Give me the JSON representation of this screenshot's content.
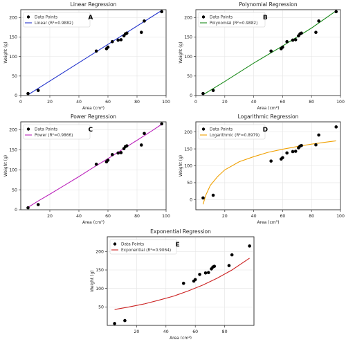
{
  "figure": {
    "panels": [
      {
        "letter": "A",
        "title": "Linear Regression"
      },
      {
        "letter": "B",
        "title": "Polynomial Regression"
      },
      {
        "letter": "C",
        "title": "Power Regression"
      },
      {
        "letter": "D",
        "title": "Logarithmic Regression"
      },
      {
        "letter": "E",
        "title": "Exponential Regression"
      }
    ]
  },
  "chart_data": [
    {
      "type": "scatter",
      "title": "Linear Regression",
      "panel_letter": "A",
      "xlabel": "Area (cm²)",
      "ylabel": "Weight (g)",
      "xlim": [
        0,
        100
      ],
      "ylim": [
        0,
        220
      ],
      "xticks": [
        0,
        20,
        40,
        60,
        80,
        100
      ],
      "yticks": [
        0,
        50,
        100,
        150,
        200
      ],
      "grid": true,
      "legend_position": "top-left",
      "series": [
        {
          "name": "Data Points",
          "kind": "points",
          "color": "#000000",
          "x": [
            5,
            12,
            52,
            59,
            60,
            63,
            67,
            69,
            71,
            72,
            73,
            83,
            85,
            97
          ],
          "y": [
            5,
            13,
            114,
            120,
            124,
            138,
            142,
            143,
            153,
            158,
            160,
            162,
            191,
            215
          ]
        },
        {
          "name": "Linear (R²=0.9882)",
          "kind": "fit",
          "color": "#2233cc",
          "x": [
            5,
            97
          ],
          "y": [
            2,
            218
          ]
        }
      ]
    },
    {
      "type": "scatter",
      "title": "Polynomial Regression",
      "panel_letter": "B",
      "xlabel": "Area (cm²)",
      "ylabel": "Weight (g)",
      "xlim": [
        0,
        100
      ],
      "ylim": [
        0,
        220
      ],
      "xticks": [
        0,
        20,
        40,
        60,
        80,
        100
      ],
      "yticks": [
        0,
        50,
        100,
        150,
        200
      ],
      "grid": true,
      "legend_position": "top-left",
      "series": [
        {
          "name": "Data Points",
          "kind": "points",
          "color": "#000000",
          "x": [
            5,
            12,
            52,
            59,
            60,
            63,
            67,
            69,
            71,
            72,
            73,
            83,
            85,
            97
          ],
          "y": [
            5,
            13,
            114,
            120,
            124,
            138,
            142,
            143,
            153,
            158,
            160,
            162,
            191,
            215
          ]
        },
        {
          "name": "Polynomial (R²=0.9882)",
          "kind": "fit",
          "color": "#1a8a1a",
          "x": [
            5,
            20,
            40,
            60,
            80,
            97
          ],
          "y": [
            2,
            36,
            83,
            127,
            173,
            217
          ]
        }
      ]
    },
    {
      "type": "scatter",
      "title": "Power Regression",
      "panel_letter": "C",
      "xlabel": "Area (cm²)",
      "ylabel": "Weight (g)",
      "xlim": [
        0,
        100
      ],
      "ylim": [
        0,
        220
      ],
      "xticks": [
        20,
        40,
        60,
        80,
        100
      ],
      "yticks": [
        0,
        50,
        100,
        150,
        200
      ],
      "grid": true,
      "legend_position": "top-left",
      "series": [
        {
          "name": "Data Points",
          "kind": "points",
          "color": "#000000",
          "x": [
            5,
            12,
            52,
            59,
            60,
            63,
            67,
            69,
            71,
            72,
            73,
            83,
            85,
            97
          ],
          "y": [
            5,
            13,
            114,
            120,
            124,
            138,
            142,
            143,
            153,
            158,
            160,
            162,
            191,
            215
          ]
        },
        {
          "name": "Power (R²=0.9866)",
          "kind": "fit",
          "color": "#bb22bb",
          "x": [
            5,
            12,
            20,
            30,
            40,
            50,
            60,
            70,
            80,
            90,
            97
          ],
          "y": [
            6,
            22,
            39,
            61,
            83,
            106,
            128,
            151,
            174,
            197,
            214
          ]
        }
      ]
    },
    {
      "type": "scatter",
      "title": "Logarithmic Regression",
      "panel_letter": "D",
      "xlabel": "Area (cm²)",
      "ylabel": "Weight (g)",
      "xlim": [
        0,
        100
      ],
      "ylim": [
        -30,
        230
      ],
      "xticks": [
        20,
        40,
        60,
        80,
        100
      ],
      "yticks": [
        0,
        50,
        100,
        150,
        200
      ],
      "grid": true,
      "legend_position": "top-left",
      "series": [
        {
          "name": "Data Points",
          "kind": "points",
          "color": "#000000",
          "x": [
            5,
            12,
            52,
            59,
            60,
            63,
            67,
            69,
            71,
            72,
            73,
            83,
            85,
            97
          ],
          "y": [
            5,
            13,
            114,
            120,
            124,
            138,
            142,
            143,
            153,
            158,
            160,
            162,
            191,
            215
          ]
        },
        {
          "name": "Logarithmic (R²=0.8979)",
          "kind": "fit",
          "color": "#f0a000",
          "x": [
            5,
            7,
            10,
            15,
            20,
            30,
            40,
            50,
            60,
            70,
            80,
            90,
            97
          ],
          "y": [
            -14,
            14,
            42,
            68,
            88,
            112,
            127,
            140,
            149,
            157,
            164,
            170,
            174
          ]
        }
      ]
    },
    {
      "type": "scatter",
      "title": "Exponential Regression",
      "panel_letter": "E",
      "xlabel": "Area (cm²)",
      "ylabel": "Weight (g)",
      "xlim": [
        0,
        100
      ],
      "ylim": [
        0,
        240
      ],
      "xticks": [
        20,
        40,
        60,
        80
      ],
      "yticks": [
        50,
        100,
        150,
        200
      ],
      "grid": true,
      "legend_position": "top-left",
      "series": [
        {
          "name": "Data Points",
          "kind": "points",
          "color": "#000000",
          "x": [
            5,
            12,
            52,
            59,
            60,
            63,
            67,
            69,
            71,
            72,
            73,
            83,
            85,
            97
          ],
          "y": [
            5,
            13,
            114,
            120,
            124,
            138,
            142,
            143,
            153,
            158,
            160,
            162,
            191,
            215
          ]
        },
        {
          "name": "Exponential (R²=0.9064)",
          "kind": "fit",
          "color": "#cc2222",
          "x": [
            5,
            15,
            25,
            35,
            45,
            55,
            65,
            75,
            85,
            97
          ],
          "y": [
            43,
            50,
            58,
            68,
            79,
            93,
            109,
            128,
            150,
            182
          ]
        }
      ]
    }
  ]
}
